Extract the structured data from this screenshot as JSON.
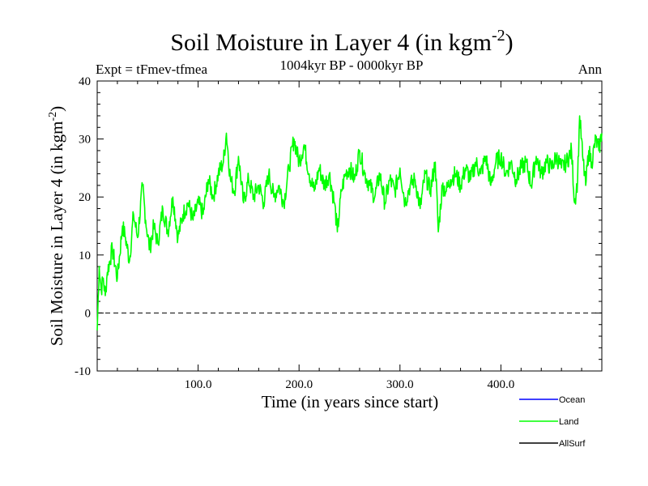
{
  "chart_data": {
    "type": "line",
    "title": "Soil Moisture in Layer 4 (in kgm",
    "title_sup": "-2",
    "title_close": ")",
    "subtitle": "1004kyr BP - 0000kyr BP",
    "left_label": "Expt = tFmev-tfmea",
    "right_label": "Ann",
    "xlabel": "Time (in years since start)",
    "ylabel": "Soil Moisture in Layer 4 (in kgm",
    "ylabel_sup": "-2",
    "ylabel_close": ")",
    "xlim": [
      0,
      500
    ],
    "ylim": [
      -10,
      40
    ],
    "x_ticks": [
      100,
      200,
      300,
      400
    ],
    "x_tick_labels": [
      "100.0",
      "200.0",
      "300.0",
      "400.0"
    ],
    "y_ticks": [
      -10,
      0,
      10,
      20,
      30,
      40
    ],
    "y_tick_labels": [
      "-10",
      "0",
      "10",
      "20",
      "30",
      "40"
    ],
    "reference_line_y": 0,
    "colors": {
      "Ocean": "#0000ff",
      "Land": "#00ff00",
      "AllSurf": "#000000"
    },
    "legend": [
      "Ocean",
      "Land",
      "AllSurf"
    ],
    "legend_position": "bottom-right",
    "series": [
      {
        "name": "Land",
        "x": [
          0,
          2,
          4,
          6,
          8,
          10,
          15,
          20,
          25,
          28,
          32,
          36,
          40,
          45,
          48,
          52,
          56,
          60,
          65,
          70,
          75,
          80,
          85,
          90,
          95,
          100,
          105,
          110,
          115,
          120,
          125,
          128,
          132,
          136,
          140,
          145,
          150,
          155,
          160,
          165,
          170,
          175,
          180,
          185,
          190,
          195,
          200,
          205,
          210,
          215,
          220,
          225,
          230,
          235,
          238,
          242,
          246,
          250,
          255,
          260,
          265,
          270,
          275,
          280,
          285,
          290,
          295,
          300,
          305,
          310,
          315,
          320,
          325,
          330,
          335,
          338,
          342,
          346,
          350,
          355,
          360,
          365,
          370,
          375,
          380,
          385,
          390,
          395,
          400,
          405,
          410,
          415,
          420,
          425,
          430,
          435,
          440,
          445,
          450,
          455,
          460,
          465,
          470,
          473,
          476,
          478,
          481,
          484,
          487,
          490,
          494,
          497,
          500
        ],
        "y": [
          -3,
          8,
          4,
          6,
          3,
          7,
          11,
          6,
          15,
          13,
          9,
          17,
          13,
          22,
          16,
          11,
          15,
          12,
          18,
          14,
          20,
          13,
          17,
          19,
          16,
          19,
          17,
          23,
          20,
          24,
          26,
          31,
          23,
          21,
          27,
          19,
          23,
          20,
          22,
          19,
          24,
          20,
          22,
          19,
          25,
          30,
          26,
          29,
          24,
          21,
          25,
          22,
          24,
          19,
          14,
          21,
          24,
          25,
          23,
          28,
          24,
          22,
          20,
          24,
          19,
          23,
          21,
          25,
          19,
          22,
          23,
          18,
          24,
          21,
          26,
          14,
          22,
          21,
          23,
          24,
          22,
          25,
          23,
          26,
          24,
          27,
          22,
          26,
          27,
          24,
          26,
          23,
          25,
          26,
          22,
          27,
          24,
          26,
          25,
          27,
          25,
          26,
          28,
          19,
          23,
          34,
          27,
          22,
          28,
          26,
          30,
          28,
          31
        ]
      },
      {
        "name": "Ocean",
        "x": [],
        "y": []
      },
      {
        "name": "AllSurf",
        "x": [],
        "y": []
      }
    ]
  }
}
